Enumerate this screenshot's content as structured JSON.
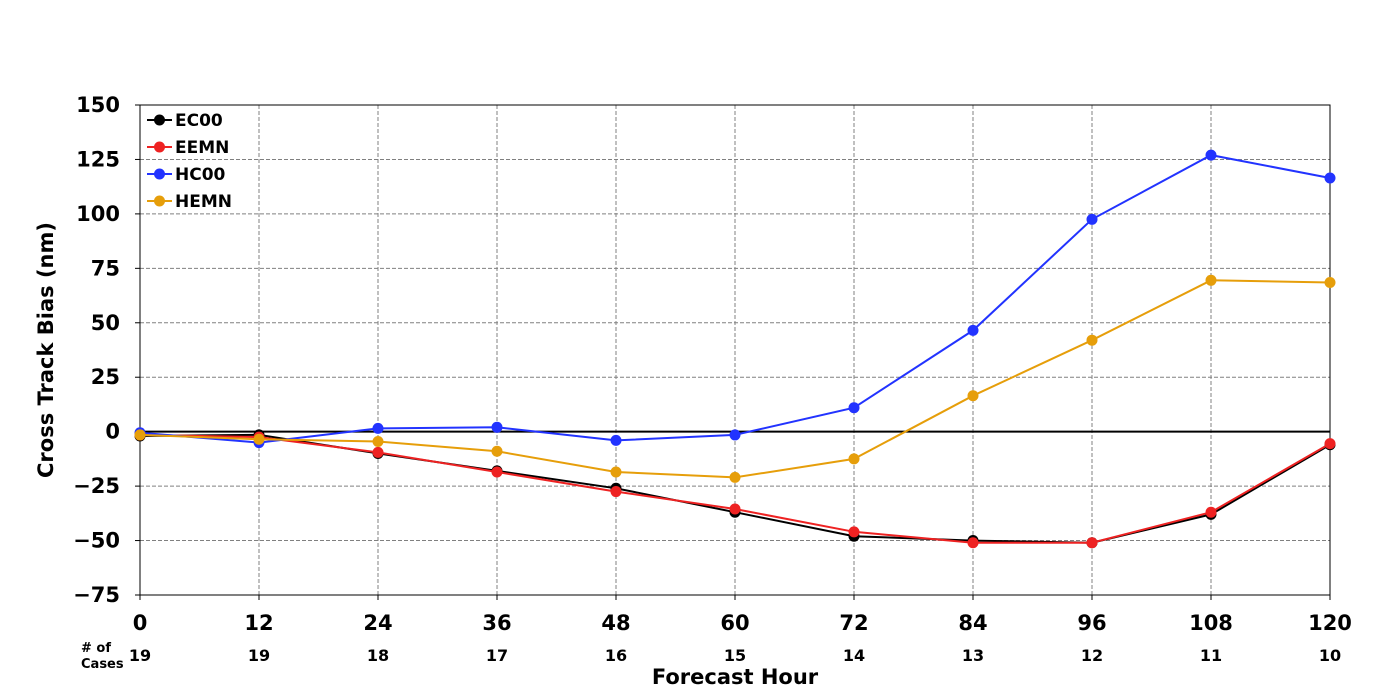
{
  "chart_data": {
    "type": "line",
    "xlabel": "Forecast Hour",
    "ylabel": "Cross Track Bias (nm)",
    "x": [
      0,
      12,
      24,
      36,
      48,
      60,
      72,
      84,
      96,
      108,
      120
    ],
    "xticks": [
      "0",
      "12",
      "24",
      "36",
      "48",
      "60",
      "72",
      "84",
      "96",
      "108",
      "120"
    ],
    "yticks": [
      "150",
      "125",
      "100",
      "75",
      "50",
      "25",
      "0",
      "−25",
      "−50",
      "−75"
    ],
    "ylim": [
      -75,
      150
    ],
    "xlim": [
      0,
      120
    ],
    "grid": true,
    "legend_position": "top-left",
    "cases_label_line1": "# of",
    "cases_label_line2": "Cases",
    "cases": [
      "19",
      "19",
      "18",
      "17",
      "16",
      "15",
      "14",
      "13",
      "12",
      "11",
      "10"
    ],
    "series": [
      {
        "name": "EC00",
        "color": "#000000",
        "values": [
          -2,
          -1.5,
          -10,
          -18,
          -26,
          -37,
          -48,
          -50,
          -51,
          -38,
          -6
        ]
      },
      {
        "name": "EEMN",
        "color": "#ee2222",
        "values": [
          -1.5,
          -2.5,
          -9.5,
          -18.5,
          -27.5,
          -35.5,
          -46,
          -51,
          -51,
          -37,
          -5.5
        ]
      },
      {
        "name": "HC00",
        "color": "#2233ff",
        "values": [
          -0.5,
          -5,
          1.5,
          2,
          -4,
          -1.5,
          11,
          46.5,
          97.5,
          127,
          116.5
        ]
      },
      {
        "name": "HEMN",
        "color": "#e69e0a",
        "values": [
          -1.5,
          -3.5,
          -4.5,
          -9,
          -18.5,
          -21,
          -12.5,
          16.5,
          42,
          69.5,
          68.5
        ]
      }
    ]
  }
}
